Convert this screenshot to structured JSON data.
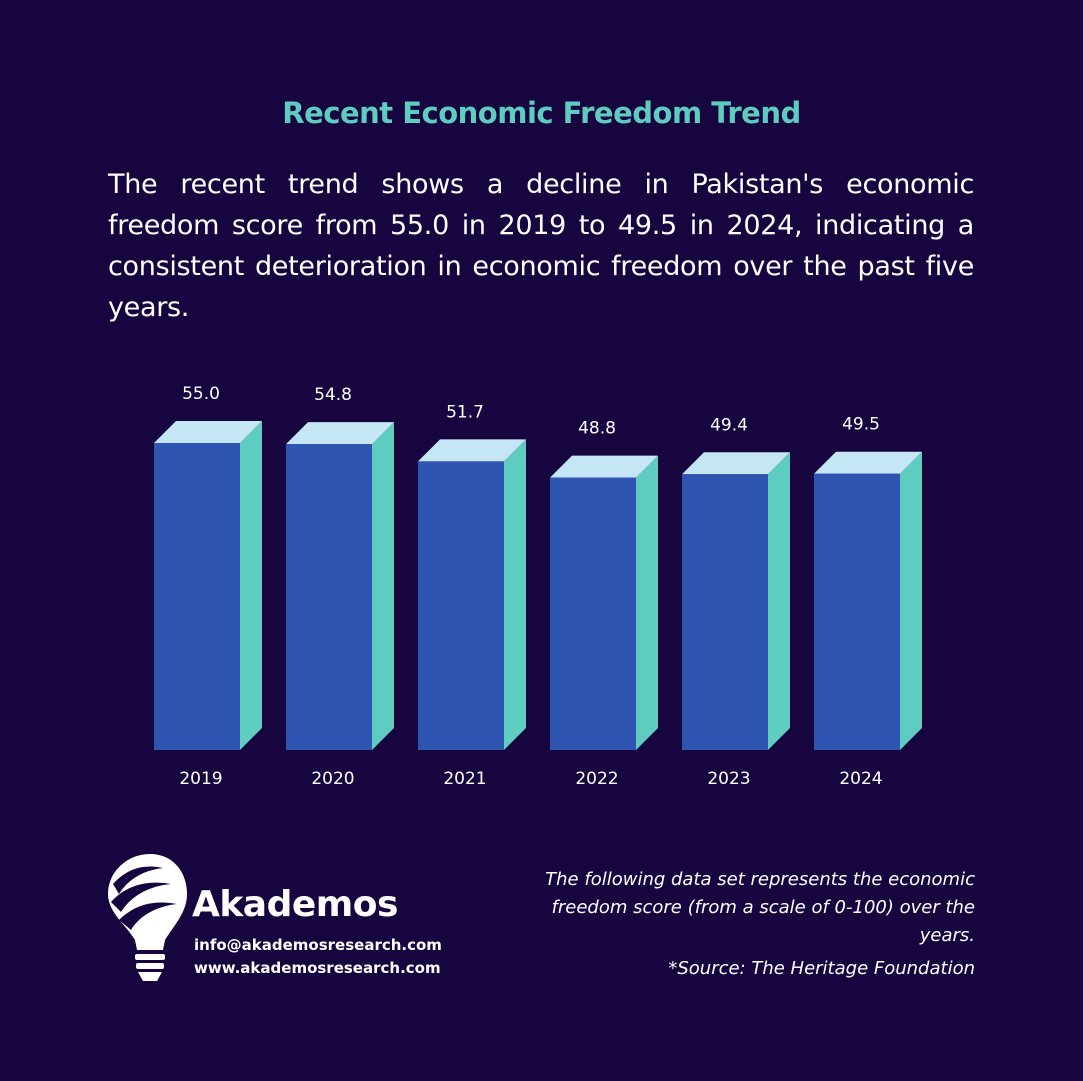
{
  "header": {
    "title": "Recent Economic Freedom Trend",
    "description": "The recent trend shows a decline in Pakistan's economic freedom score from 55.0 in 2019 to 49.5 in 2024, indicating a consistent deterioration in economic freedom over the past five years."
  },
  "chart_data": {
    "type": "bar",
    "style": "3d",
    "categories": [
      "2019",
      "2020",
      "2021",
      "2022",
      "2023",
      "2024"
    ],
    "values": [
      55.0,
      54.8,
      51.7,
      48.8,
      49.4,
      49.5
    ],
    "value_labels": [
      "55.0",
      "54.8",
      "51.7",
      "48.8",
      "49.4",
      "49.5"
    ],
    "title": "",
    "xlabel": "",
    "ylabel": "",
    "grid": false,
    "colors": {
      "front": "#2e55b1",
      "side": "#5ecdbf",
      "top": "#c5e6f4"
    }
  },
  "footer": {
    "brand_name": "Akademos",
    "email": "info@akademosresearch.com",
    "website": "www.akademosresearch.com",
    "logo_icon": "lightbulb-icon",
    "note": "The following data set represents the economic freedom score (from a scale of 0-100) over the years.",
    "source": "*Source: The Heritage Foundation"
  },
  "colors": {
    "background": "#170540",
    "accent": "#5ecdbf",
    "text": "#ffffff"
  }
}
